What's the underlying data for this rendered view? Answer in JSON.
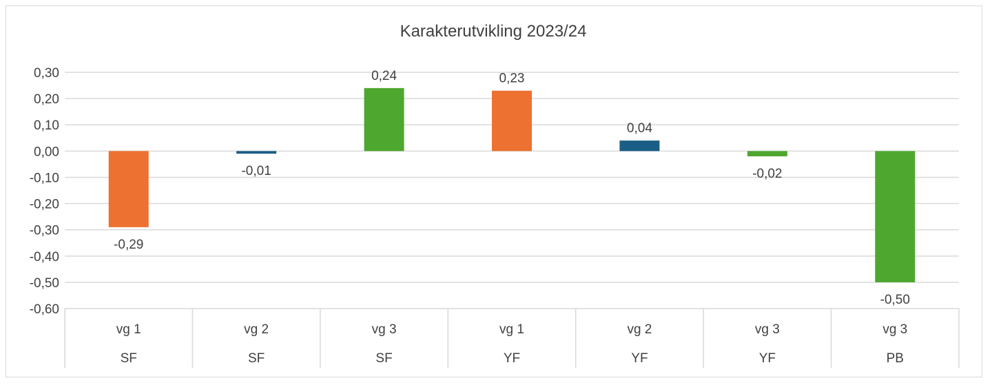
{
  "chart_data": {
    "type": "bar",
    "title": "Karakterutvikling 2023/24",
    "categories": [
      {
        "level1": "vg 1",
        "level2": "SF"
      },
      {
        "level1": "vg 2",
        "level2": "SF"
      },
      {
        "level1": "vg 3",
        "level2": "SF"
      },
      {
        "level1": "vg 1",
        "level2": "YF"
      },
      {
        "level1": "vg 2",
        "level2": "YF"
      },
      {
        "level1": "vg 3",
        "level2": "YF"
      },
      {
        "level1": "vg 3",
        "level2": "PB"
      }
    ],
    "values": [
      -0.29,
      -0.01,
      0.24,
      0.23,
      0.04,
      -0.02,
      -0.5
    ],
    "value_labels": [
      "-0,29",
      "-0,01",
      "0,24",
      "0,23",
      "0,04",
      "-0,02",
      "-0,50"
    ],
    "bar_colors": [
      "#ED7131",
      "#1A5E85",
      "#4EA72E",
      "#ED7131",
      "#1A5E85",
      "#4EA72E",
      "#4EA72E"
    ],
    "ylim": [
      -0.6,
      0.3
    ],
    "y_ticks": [
      0.3,
      0.2,
      0.1,
      0.0,
      -0.1,
      -0.2,
      -0.3,
      -0.4,
      -0.5,
      -0.6
    ],
    "y_tick_labels": [
      "0,30",
      "0,20",
      "0,10",
      "0,00",
      "-0,10",
      "-0,20",
      "-0,30",
      "-0,40",
      "-0,50",
      "-0,60"
    ],
    "grid": true,
    "xlabel": "",
    "ylabel": "",
    "legend": "none"
  },
  "colors": {
    "grid": "#d9d9d9",
    "text": "#404040",
    "border": "#d9d9d9"
  }
}
